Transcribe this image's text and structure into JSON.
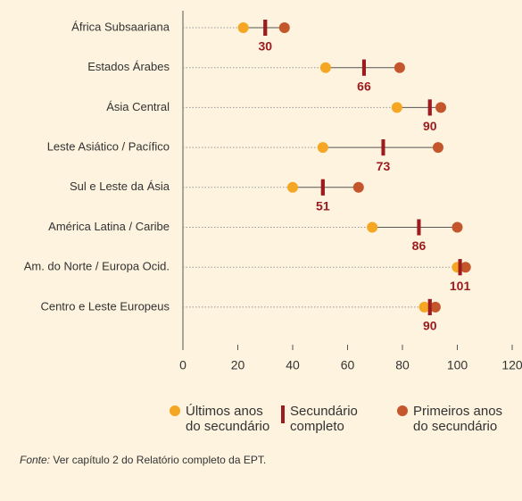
{
  "chart_data": {
    "type": "dotplot",
    "categories": [
      "África Subsaariana",
      "Estados Árabes",
      "Ásia Central",
      "Leste Asiático / Pacífico",
      "Sul e Leste da Ásia",
      "América Latina / Caribe",
      "Am. do Norte / Europa Ocid.",
      "Centro e Leste Europeus"
    ],
    "series": [
      {
        "name": "Últimos anos do secundário",
        "color": "#f5a623",
        "marker": "dot",
        "values": [
          22,
          52,
          78,
          51,
          40,
          69,
          100,
          88
        ]
      },
      {
        "name": "Secundário completo",
        "color": "#9b1b1e",
        "marker": "tick",
        "values": [
          30,
          66,
          90,
          73,
          51,
          86,
          101,
          90
        ]
      },
      {
        "name": "Primeiros anos do secundário",
        "color": "#c4562c",
        "marker": "dot",
        "values": [
          37,
          79,
          94,
          93,
          64,
          100,
          103,
          92
        ]
      }
    ],
    "xlim": [
      0,
      120
    ],
    "xticks": [
      0,
      20,
      40,
      60,
      80,
      100,
      120
    ],
    "source_label": "Fonte:",
    "source_text": "Ver capítulo 2 do Relatório completo da EPT."
  }
}
